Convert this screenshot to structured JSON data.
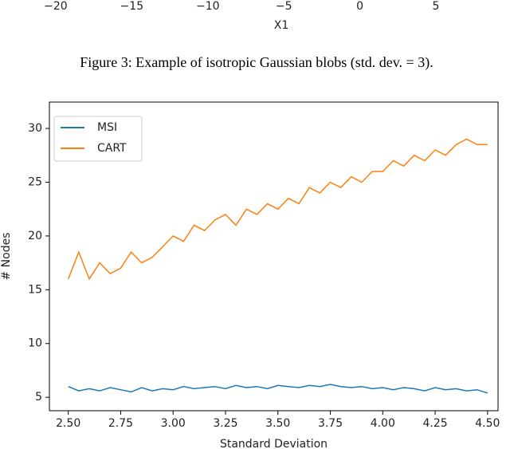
{
  "caption": "Figure 3: Example of isotropic Gaussian blobs (std. dev. = 3).",
  "chart_data": [
    {
      "type": "axis",
      "xlabel": "X1",
      "xlim": [
        -21.57,
        6.73
      ],
      "xticks": [
        {
          "value": -20,
          "label": "−20"
        },
        {
          "value": -15,
          "label": "−15"
        },
        {
          "value": -10,
          "label": "−10"
        },
        {
          "value": -5,
          "label": "−5"
        },
        0,
        5
      ]
    },
    {
      "type": "line",
      "xlabel": "Standard Deviation",
      "ylabel": "# Nodes",
      "legend": "upper left",
      "xlim": [
        2.41,
        4.55
      ],
      "ylim": [
        3.75,
        32.45
      ],
      "xticks": [
        {
          "value": 2.5,
          "label": "2.50"
        },
        {
          "value": 2.75,
          "label": "2.75"
        },
        {
          "value": 3,
          "label": "3.00"
        },
        {
          "value": 3.25,
          "label": "3.25"
        },
        {
          "value": 3.5,
          "label": "3.50"
        },
        {
          "value": 3.75,
          "label": "3.75"
        },
        {
          "value": 4,
          "label": "4.00"
        },
        {
          "value": 4.25,
          "label": "4.25"
        },
        {
          "value": 4.5,
          "label": "4.50"
        }
      ],
      "yticks": [
        5,
        10,
        15,
        20,
        25,
        30
      ],
      "x": [
        2.5,
        2.55,
        2.6,
        2.65,
        2.7,
        2.75,
        2.8,
        2.85,
        2.9,
        2.95,
        3.0,
        3.05,
        3.1,
        3.15,
        3.2,
        3.25,
        3.3,
        3.35,
        3.4,
        3.45,
        3.5,
        3.55,
        3.6,
        3.65,
        3.7,
        3.75,
        3.8,
        3.85,
        3.9,
        3.95,
        4.0,
        4.05,
        4.1,
        4.15,
        4.2,
        4.25,
        4.3,
        4.35,
        4.4,
        4.45,
        4.5
      ],
      "series": [
        {
          "name": "MSI",
          "color": "#1f77b4",
          "values": [
            6.0,
            5.6,
            5.8,
            5.6,
            5.9,
            5.7,
            5.5,
            5.9,
            5.6,
            5.8,
            5.7,
            6.0,
            5.8,
            5.9,
            6.0,
            5.8,
            6.1,
            5.9,
            6.0,
            5.8,
            6.1,
            6.0,
            5.9,
            6.1,
            6.0,
            6.2,
            6.0,
            5.9,
            6.0,
            5.8,
            5.9,
            5.7,
            5.9,
            5.8,
            5.6,
            5.9,
            5.7,
            5.8,
            5.6,
            5.7,
            5.4
          ]
        },
        {
          "name": "CART",
          "color": "#ff7f0e",
          "values": [
            16.0,
            18.5,
            16.0,
            17.5,
            16.5,
            17.0,
            18.5,
            17.5,
            18.0,
            19.0,
            20.0,
            19.5,
            21.0,
            20.5,
            21.5,
            22.0,
            21.0,
            22.5,
            22.0,
            23.0,
            22.5,
            23.5,
            23.0,
            24.5,
            24.0,
            25.0,
            24.5,
            25.5,
            25.0,
            26.0,
            26.0,
            27.0,
            26.5,
            27.5,
            27.0,
            28.0,
            27.5,
            28.5,
            29.0,
            28.5,
            28.5
          ]
        }
      ]
    }
  ]
}
